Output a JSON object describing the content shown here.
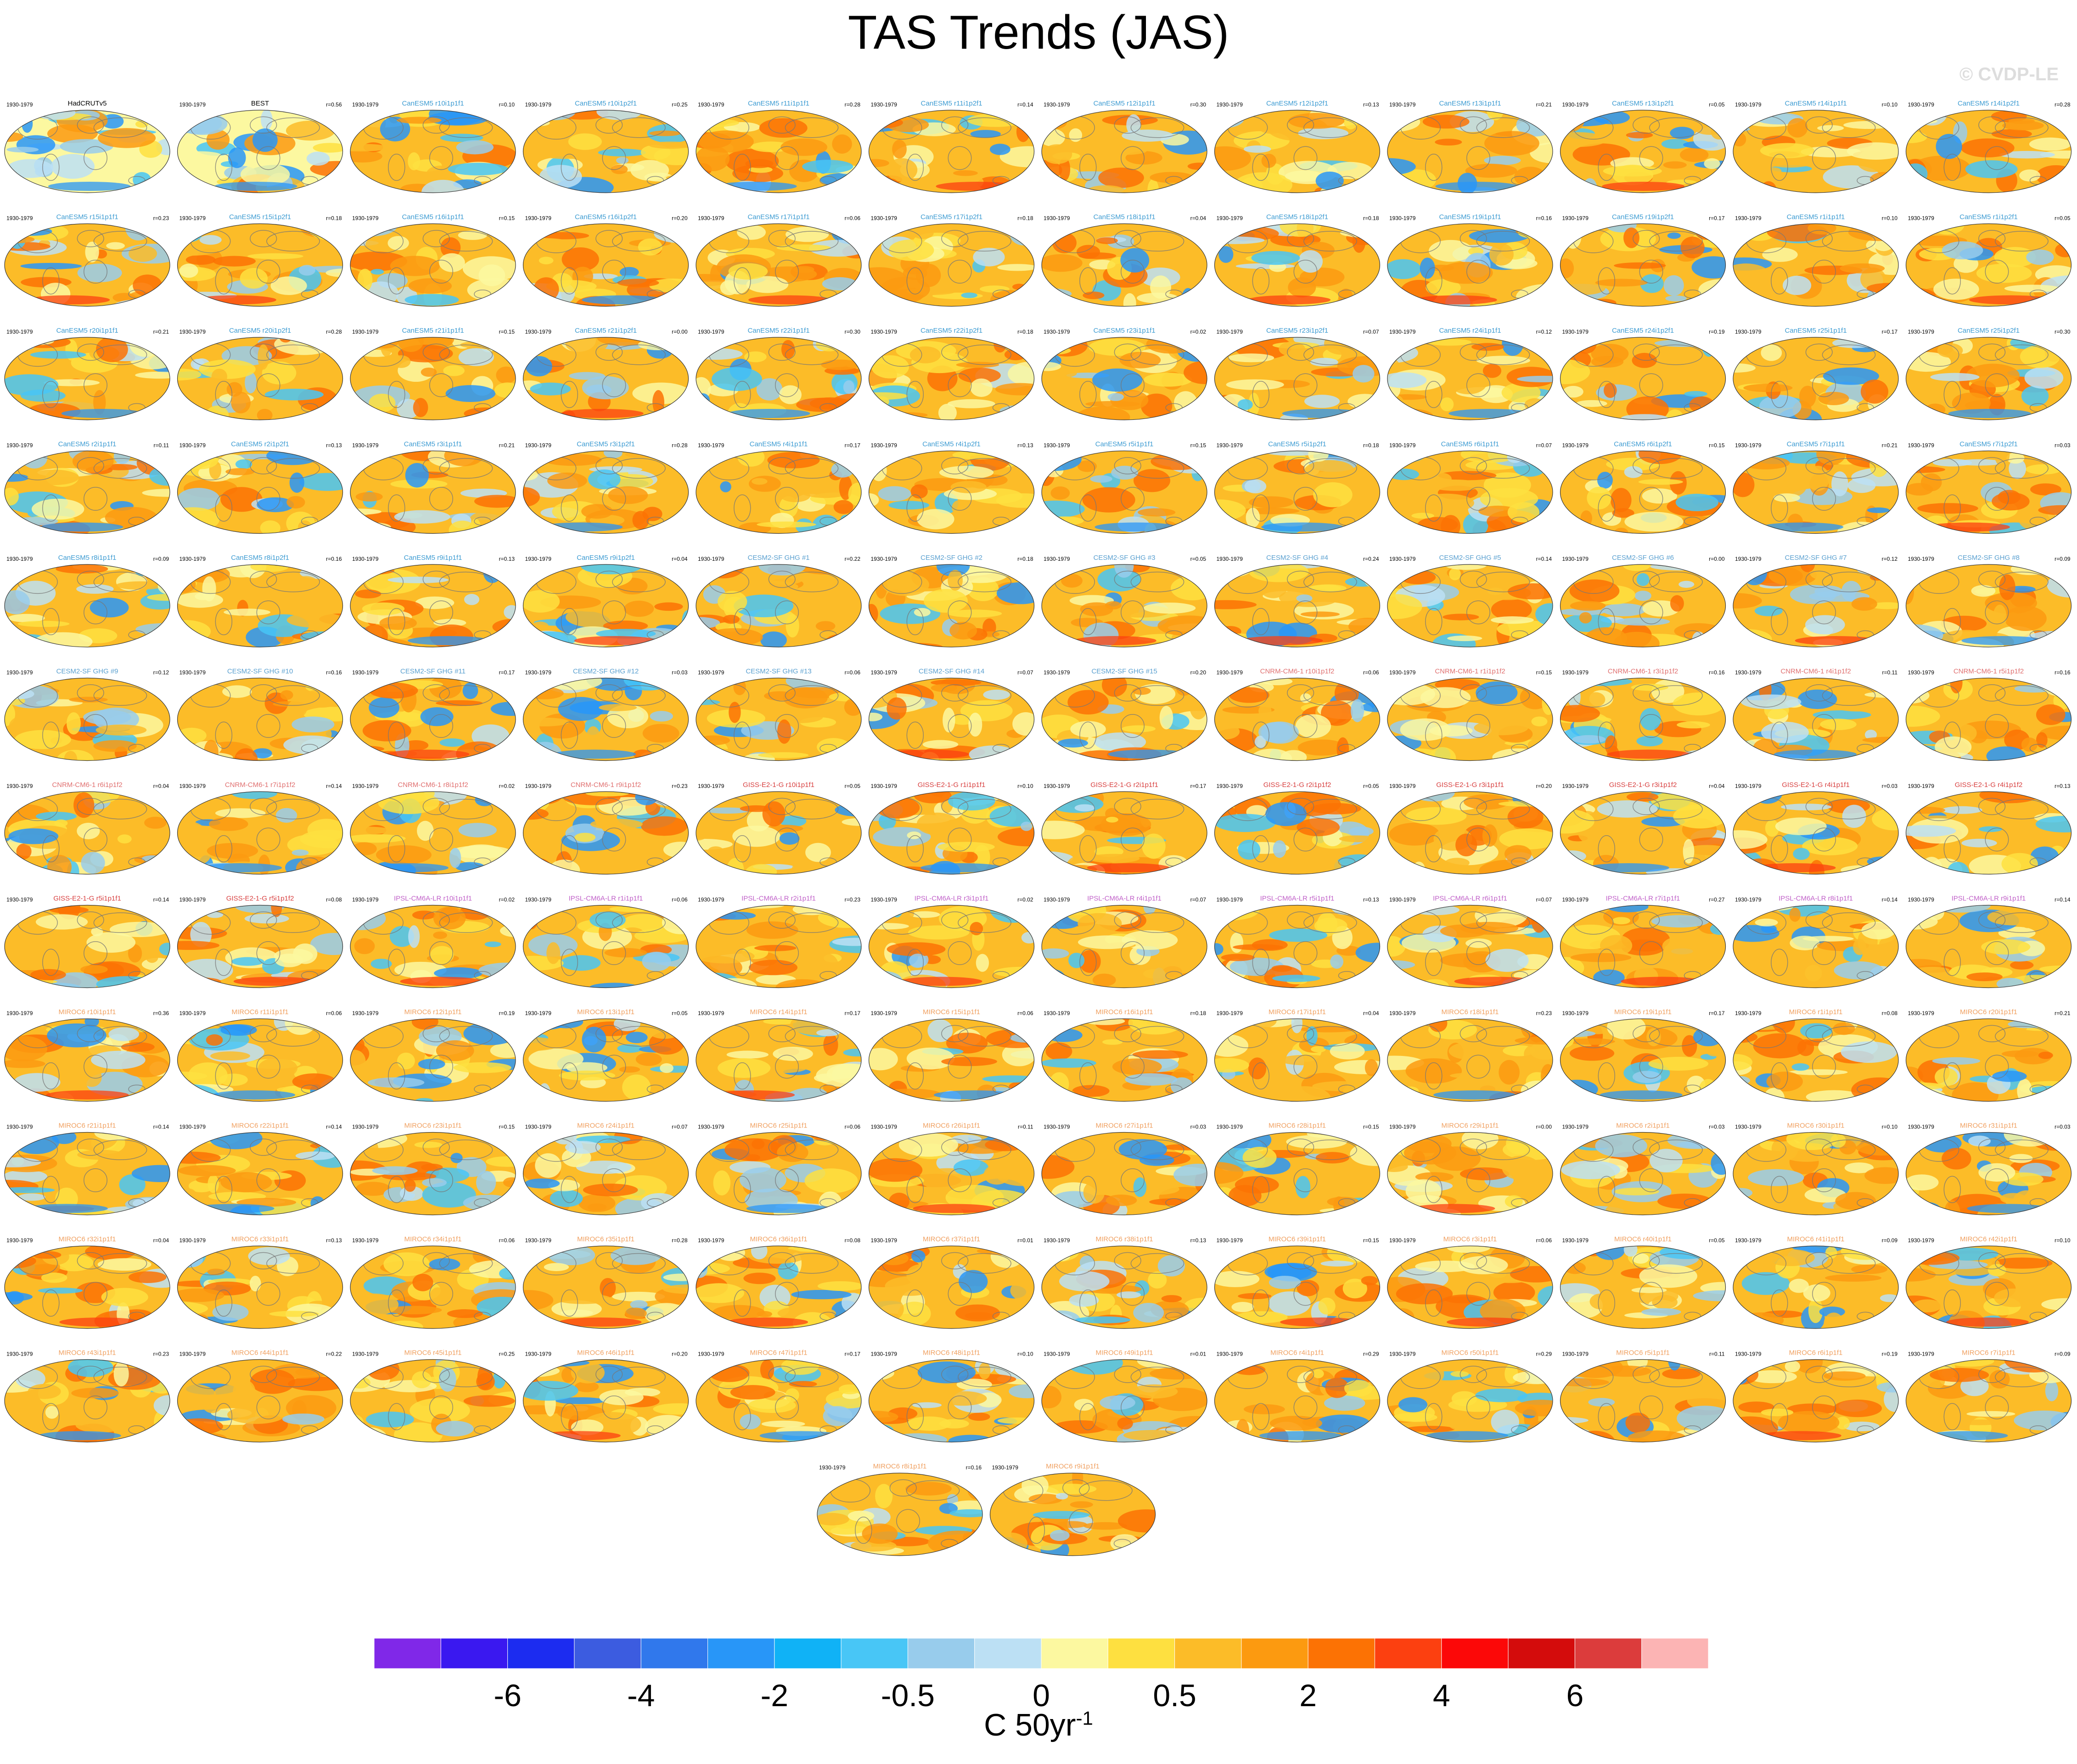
{
  "title": "TAS Trends (JAS)",
  "copyright": "© CVDP-LE",
  "chart_data": {
    "type": "map-panels",
    "period": "1930-1979",
    "panels": [
      {
        "name": "HadCRUTv5",
        "r": ""
      },
      {
        "name": "BEST",
        "r": "r=0.56"
      },
      {
        "name": "CanESM5 r10i1p1f1",
        "r": "r=0.10"
      },
      {
        "name": "CanESM5 r10i1p2f1",
        "r": "r=0.25"
      },
      {
        "name": "CanESM5 r11i1p1f1",
        "r": "r=0.28"
      },
      {
        "name": "CanESM5 r11i1p2f1",
        "r": "r=0.14"
      },
      {
        "name": "CanESM5 r12i1p1f1",
        "r": "r=0.30"
      },
      {
        "name": "CanESM5 r12i1p2f1",
        "r": "r=0.13"
      },
      {
        "name": "CanESM5 r13i1p1f1",
        "r": "r=0.21"
      },
      {
        "name": "CanESM5 r13i1p2f1",
        "r": "r=0.05"
      },
      {
        "name": "CanESM5 r14i1p1f1",
        "r": "r=0.10"
      },
      {
        "name": "CanESM5 r14i1p2f1",
        "r": "r=0.28"
      },
      {
        "name": "CanESM5 r15i1p1f1",
        "r": "r=0.23"
      },
      {
        "name": "CanESM5 r15i1p2f1",
        "r": "r=0.18"
      },
      {
        "name": "CanESM5 r16i1p1f1",
        "r": "r=0.15"
      },
      {
        "name": "CanESM5 r16i1p2f1",
        "r": "r=0.20"
      },
      {
        "name": "CanESM5 r17i1p1f1",
        "r": "r=0.06"
      },
      {
        "name": "CanESM5 r17i1p2f1",
        "r": "r=0.18"
      },
      {
        "name": "CanESM5 r18i1p1f1",
        "r": "r=0.04"
      },
      {
        "name": "CanESM5 r18i1p2f1",
        "r": "r=0.18"
      },
      {
        "name": "CanESM5 r19i1p1f1",
        "r": "r=0.16"
      },
      {
        "name": "CanESM5 r19i1p2f1",
        "r": "r=0.17"
      },
      {
        "name": "CanESM5 r1i1p1f1",
        "r": "r=0.10"
      },
      {
        "name": "CanESM5 r1i1p2f1",
        "r": "r=0.05"
      },
      {
        "name": "CanESM5 r20i1p1f1",
        "r": "r=0.21"
      },
      {
        "name": "CanESM5 r20i1p2f1",
        "r": "r=0.28"
      },
      {
        "name": "CanESM5 r21i1p1f1",
        "r": "r=0.15"
      },
      {
        "name": "CanESM5 r21i1p2f1",
        "r": "r=0.00"
      },
      {
        "name": "CanESM5 r22i1p1f1",
        "r": "r=0.30"
      },
      {
        "name": "CanESM5 r22i1p2f1",
        "r": "r=0.18"
      },
      {
        "name": "CanESM5 r23i1p1f1",
        "r": "r=0.02"
      },
      {
        "name": "CanESM5 r23i1p2f1",
        "r": "r=0.07"
      },
      {
        "name": "CanESM5 r24i1p1f1",
        "r": "r=0.12"
      },
      {
        "name": "CanESM5 r24i1p2f1",
        "r": "r=0.19"
      },
      {
        "name": "CanESM5 r25i1p1f1",
        "r": "r=0.17"
      },
      {
        "name": "CanESM5 r25i1p2f1",
        "r": "r=0.30"
      },
      {
        "name": "CanESM5 r2i1p1f1",
        "r": "r=0.11"
      },
      {
        "name": "CanESM5 r2i1p2f1",
        "r": "r=0.13"
      },
      {
        "name": "CanESM5 r3i1p1f1",
        "r": "r=0.21"
      },
      {
        "name": "CanESM5 r3i1p2f1",
        "r": "r=0.28"
      },
      {
        "name": "CanESM5 r4i1p1f1",
        "r": "r=0.17"
      },
      {
        "name": "CanESM5 r4i1p2f1",
        "r": "r=0.13"
      },
      {
        "name": "CanESM5 r5i1p1f1",
        "r": "r=0.15"
      },
      {
        "name": "CanESM5 r5i1p2f1",
        "r": "r=0.18"
      },
      {
        "name": "CanESM5 r6i1p1f1",
        "r": "r=0.07"
      },
      {
        "name": "CanESM5 r6i1p2f1",
        "r": "r=0.15"
      },
      {
        "name": "CanESM5 r7i1p1f1",
        "r": "r=0.21"
      },
      {
        "name": "CanESM5 r7i1p2f1",
        "r": "r=0.03"
      },
      {
        "name": "CanESM5 r8i1p1f1",
        "r": "r=0.09"
      },
      {
        "name": "CanESM5 r8i1p2f1",
        "r": "r=0.16"
      },
      {
        "name": "CanESM5 r9i1p1f1",
        "r": "r=0.13"
      },
      {
        "name": "CanESM5 r9i1p2f1",
        "r": "r=0.04"
      },
      {
        "name": "CESM2-SF GHG #1",
        "r": "r=0.22"
      },
      {
        "name": "CESM2-SF GHG #2",
        "r": "r=0.18"
      },
      {
        "name": "CESM2-SF GHG #3",
        "r": "r=0.05"
      },
      {
        "name": "CESM2-SF GHG #4",
        "r": "r=0.24"
      },
      {
        "name": "CESM2-SF GHG #5",
        "r": "r=0.14"
      },
      {
        "name": "CESM2-SF GHG #6",
        "r": "r=0.00"
      },
      {
        "name": "CESM2-SF GHG #7",
        "r": "r=0.12"
      },
      {
        "name": "CESM2-SF GHG #8",
        "r": "r=0.09"
      },
      {
        "name": "CESM2-SF GHG #9",
        "r": "r=0.12"
      },
      {
        "name": "CESM2-SF GHG #10",
        "r": "r=0.16"
      },
      {
        "name": "CESM2-SF GHG #11",
        "r": "r=0.17"
      },
      {
        "name": "CESM2-SF GHG #12",
        "r": "r=0.03"
      },
      {
        "name": "CESM2-SF GHG #13",
        "r": "r=0.06"
      },
      {
        "name": "CESM2-SF GHG #14",
        "r": "r=0.07"
      },
      {
        "name": "CESM2-SF GHG #15",
        "r": "r=0.20"
      },
      {
        "name": "CNRM-CM6-1 r10i1p1f2",
        "r": "r=0.06"
      },
      {
        "name": "CNRM-CM6-1 r1i1p1f2",
        "r": "r=0.15"
      },
      {
        "name": "CNRM-CM6-1 r3i1p1f2",
        "r": "r=0.16"
      },
      {
        "name": "CNRM-CM6-1 r4i1p1f2",
        "r": "r=0.11"
      },
      {
        "name": "CNRM-CM6-1 r5i1p1f2",
        "r": "r=0.16"
      },
      {
        "name": "CNRM-CM6-1 r6i1p1f2",
        "r": "r=0.04"
      },
      {
        "name": "CNRM-CM6-1 r7i1p1f2",
        "r": "r=0.14"
      },
      {
        "name": "CNRM-CM6-1 r8i1p1f2",
        "r": "r=0.02"
      },
      {
        "name": "CNRM-CM6-1 r9i1p1f2",
        "r": "r=0.23"
      },
      {
        "name": "GISS-E2-1-G r10i1p1f1",
        "r": "r=0.05"
      },
      {
        "name": "GISS-E2-1-G r1i1p1f1",
        "r": "r=0.10"
      },
      {
        "name": "GISS-E2-1-G r2i1p1f1",
        "r": "r=0.17"
      },
      {
        "name": "GISS-E2-1-G r2i1p1f2",
        "r": "r=0.05"
      },
      {
        "name": "GISS-E2-1-G r3i1p1f1",
        "r": "r=0.20"
      },
      {
        "name": "GISS-E2-1-G r3i1p1f2",
        "r": "r=0.04"
      },
      {
        "name": "GISS-E2-1-G r4i1p1f1",
        "r": "r=0.03"
      },
      {
        "name": "GISS-E2-1-G r4i1p1f2",
        "r": "r=0.13"
      },
      {
        "name": "GISS-E2-1-G r5i1p1f1",
        "r": "r=0.14"
      },
      {
        "name": "GISS-E2-1-G r5i1p1f2",
        "r": "r=0.08"
      },
      {
        "name": "IPSL-CM6A-LR r10i1p1f1",
        "r": "r=0.02"
      },
      {
        "name": "IPSL-CM6A-LR r1i1p1f1",
        "r": "r=0.06"
      },
      {
        "name": "IPSL-CM6A-LR r2i1p1f1",
        "r": "r=0.23"
      },
      {
        "name": "IPSL-CM6A-LR r3i1p1f1",
        "r": "r=0.02"
      },
      {
        "name": "IPSL-CM6A-LR r4i1p1f1",
        "r": "r=0.07"
      },
      {
        "name": "IPSL-CM6A-LR r5i1p1f1",
        "r": "r=0.13"
      },
      {
        "name": "IPSL-CM6A-LR r6i1p1f1",
        "r": "r=0.07"
      },
      {
        "name": "IPSL-CM6A-LR r7i1p1f1",
        "r": "r=0.27"
      },
      {
        "name": "IPSL-CM6A-LR r8i1p1f1",
        "r": "r=0.14"
      },
      {
        "name": "IPSL-CM6A-LR r9i1p1f1",
        "r": "r=0.14"
      },
      {
        "name": "MIROC6 r10i1p1f1",
        "r": "r=0.36"
      },
      {
        "name": "MIROC6 r11i1p1f1",
        "r": "r=0.06"
      },
      {
        "name": "MIROC6 r12i1p1f1",
        "r": "r=0.19"
      },
      {
        "name": "MIROC6 r13i1p1f1",
        "r": "r=0.05"
      },
      {
        "name": "MIROC6 r14i1p1f1",
        "r": "r=0.17"
      },
      {
        "name": "MIROC6 r15i1p1f1",
        "r": "r=0.06"
      },
      {
        "name": "MIROC6 r16i1p1f1",
        "r": "r=0.18"
      },
      {
        "name": "MIROC6 r17i1p1f1",
        "r": "r=0.04"
      },
      {
        "name": "MIROC6 r18i1p1f1",
        "r": "r=0.23"
      },
      {
        "name": "MIROC6 r19i1p1f1",
        "r": "r=0.17"
      },
      {
        "name": "MIROC6 r1i1p1f1",
        "r": "r=0.08"
      },
      {
        "name": "MIROC6 r20i1p1f1",
        "r": "r=0.21"
      },
      {
        "name": "MIROC6 r21i1p1f1",
        "r": "r=0.14"
      },
      {
        "name": "MIROC6 r22i1p1f1",
        "r": "r=0.14"
      },
      {
        "name": "MIROC6 r23i1p1f1",
        "r": "r=0.15"
      },
      {
        "name": "MIROC6 r24i1p1f1",
        "r": "r=0.07"
      },
      {
        "name": "MIROC6 r25i1p1f1",
        "r": "r=0.06"
      },
      {
        "name": "MIROC6 r26i1p1f1",
        "r": "r=0.11"
      },
      {
        "name": "MIROC6 r27i1p1f1",
        "r": "r=0.03"
      },
      {
        "name": "MIROC6 r28i1p1f1",
        "r": "r=0.15"
      },
      {
        "name": "MIROC6 r29i1p1f1",
        "r": "r=0.00"
      },
      {
        "name": "MIROC6 r2i1p1f1",
        "r": "r=0.03"
      },
      {
        "name": "MIROC6 r30i1p1f1",
        "r": "r=0.10"
      },
      {
        "name": "MIROC6 r31i1p1f1",
        "r": "r=0.03"
      },
      {
        "name": "MIROC6 r32i1p1f1",
        "r": "r=0.04"
      },
      {
        "name": "MIROC6 r33i1p1f1",
        "r": "r=0.13"
      },
      {
        "name": "MIROC6 r34i1p1f1",
        "r": "r=0.06"
      },
      {
        "name": "MIROC6 r35i1p1f1",
        "r": "r=0.28"
      },
      {
        "name": "MIROC6 r36i1p1f1",
        "r": "r=0.08"
      },
      {
        "name": "MIROC6 r37i1p1f1",
        "r": "r=0.01"
      },
      {
        "name": "MIROC6 r38i1p1f1",
        "r": "r=0.13"
      },
      {
        "name": "MIROC6 r39i1p1f1",
        "r": "r=0.15"
      },
      {
        "name": "MIROC6 r3i1p1f1",
        "r": "r=0.06"
      },
      {
        "name": "MIROC6 r40i1p1f1",
        "r": "r=0.05"
      },
      {
        "name": "MIROC6 r41i1p1f1",
        "r": "r=0.09"
      },
      {
        "name": "MIROC6 r42i1p1f1",
        "r": "r=0.10"
      },
      {
        "name": "MIROC6 r43i1p1f1",
        "r": "r=0.23"
      },
      {
        "name": "MIROC6 r44i1p1f1",
        "r": "r=0.22"
      },
      {
        "name": "MIROC6 r45i1p1f1",
        "r": "r=0.25"
      },
      {
        "name": "MIROC6 r46i1p1f1",
        "r": "r=0.20"
      },
      {
        "name": "MIROC6 r47i1p1f1",
        "r": "r=0.17"
      },
      {
        "name": "MIROC6 r48i1p1f1",
        "r": "r=0.10"
      },
      {
        "name": "MIROC6 r49i1p1f1",
        "r": "r=0.01"
      },
      {
        "name": "MIROC6 r4i1p1f1",
        "r": "r=0.29"
      },
      {
        "name": "MIROC6 r50i1p1f1",
        "r": "r=0.29"
      },
      {
        "name": "MIROC6 r5i1p1f1",
        "r": "r=0.11"
      },
      {
        "name": "MIROC6 r6i1p1f1",
        "r": "r=0.19"
      },
      {
        "name": "MIROC6 r7i1p1f1",
        "r": "r=0.09"
      },
      {
        "name": "MIROC6 r8i1p1f1",
        "r": "r=0.16"
      },
      {
        "name": "MIROC6 r9i1p1f1",
        "r": ""
      }
    ],
    "colorbar": {
      "colors": [
        "#8028e8",
        "#3a18f0",
        "#1c2cf0",
        "#3c5ce0",
        "#3078ec",
        "#2896f8",
        "#10b2f6",
        "#48c6f6",
        "#98ccec",
        "#bce0f4",
        "#fcf8a0",
        "#fee040",
        "#fcbc28",
        "#fc9a10",
        "#fc7204",
        "#fc4010",
        "#fc0808",
        "#d40c0c",
        "#dc3c3c",
        "#fcb4b4"
      ],
      "tick_labels": [
        "-6",
        "-4",
        "-2",
        "-0.5",
        "0",
        "0.5",
        "2",
        "4",
        "6"
      ],
      "unit": "C 50yr",
      "unit_sup": "-1"
    },
    "groups": [
      {
        "model": "CanESM5",
        "color": "#3c9bd2"
      },
      {
        "model": "CESM2-SF GHG",
        "color": "#5aa0d0"
      },
      {
        "model": "CNRM-CM6-1",
        "color": "#e07070"
      },
      {
        "model": "GISS-E2-1-G",
        "color": "#d84040"
      },
      {
        "model": "IPSL-CM6A-LR",
        "color": "#c060c8"
      },
      {
        "model": "MIROC6",
        "color": "#f0a060"
      },
      {
        "model": "obs",
        "color": "#000000"
      }
    ]
  }
}
